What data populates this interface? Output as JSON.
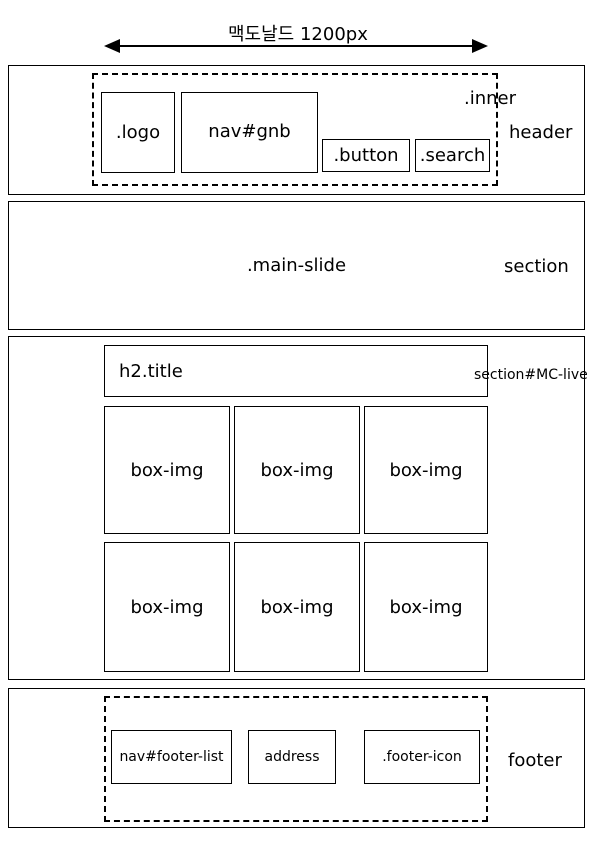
{
  "width_label": "맥도날드 1200px",
  "header": {
    "label": "header",
    "inner_label": ".inner",
    "logo": ".logo",
    "nav": "nav#gnb",
    "button": ".button",
    "search": ".search"
  },
  "main_section": {
    "label": "section",
    "slide": ".main-slide"
  },
  "live_section": {
    "label": "section#MC-live",
    "title": "h2.title",
    "boxes": [
      "box-img",
      "box-img",
      "box-img",
      "box-img",
      "box-img",
      "box-img"
    ]
  },
  "footer": {
    "label": "footer",
    "nav": "nav#footer-list",
    "address": "address",
    "icon": ".footer-icon"
  }
}
